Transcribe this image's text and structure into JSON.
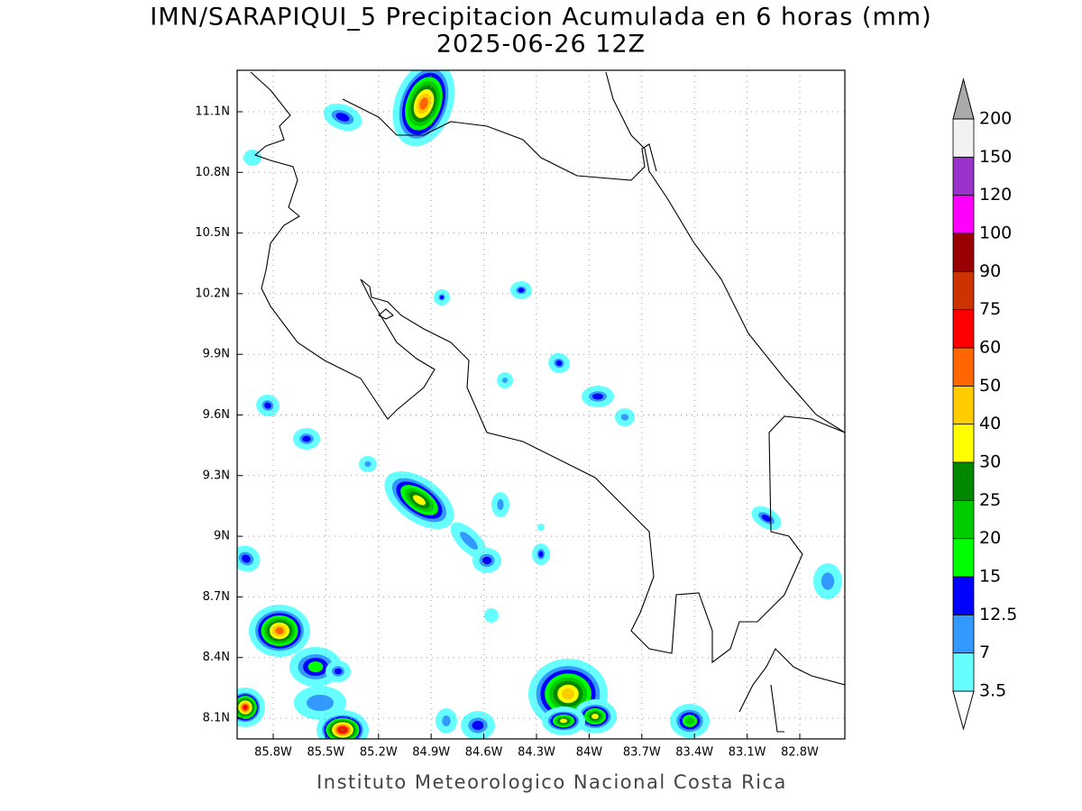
{
  "title": "IMN/SARAPIQUI_5 Precipitacion Acumulada en 6 horas (mm)",
  "subtitle": "2025-06-26 12Z",
  "map": {
    "lon_ticks": [
      "85.8W",
      "85.5W",
      "85.2W",
      "84.9W",
      "84.6W",
      "84.3W",
      "84W",
      "83.7W",
      "83.4W",
      "83.1W",
      "82.8W"
    ],
    "lat_ticks": [
      "11.1N",
      "10.8N",
      "10.5N",
      "10.2N",
      "9.9N",
      "9.6N",
      "9.3N",
      "9N",
      "8.7N",
      "8.4N",
      "8.1N"
    ],
    "grid": true
  },
  "colorbar": {
    "levels": [
      3.5,
      7,
      12.5,
      15,
      20,
      25,
      30,
      40,
      50,
      60,
      75,
      90,
      100,
      120,
      150,
      200
    ],
    "colors": [
      "#ffffff",
      "#66ffff",
      "#3399ff",
      "#0000ff",
      "#00ff00",
      "#00cc00",
      "#008800",
      "#ffff00",
      "#ffcc00",
      "#ff6600",
      "#ff0000",
      "#cc3300",
      "#990000",
      "#ff00ff",
      "#9933cc",
      "#f2f2f2",
      "#aaaaaa"
    ]
  },
  "footer": "Instituto Meteorologico Nacional Costa Rica"
}
